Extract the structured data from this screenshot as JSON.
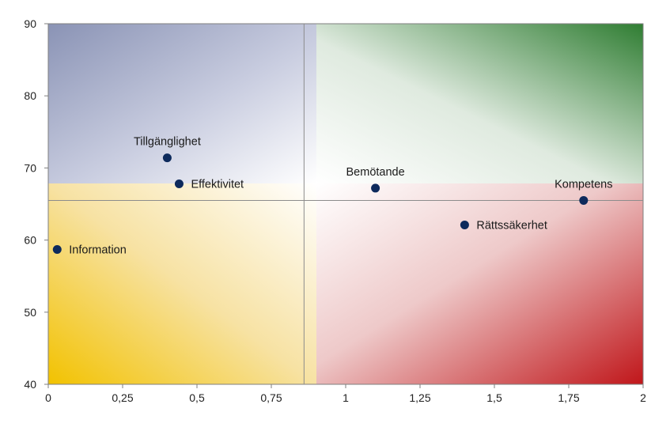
{
  "chart_data": {
    "type": "scatter",
    "title": "",
    "xlabel": "",
    "ylabel": "",
    "xlim": [
      0,
      2
    ],
    "ylim": [
      40,
      90
    ],
    "x_ticks": [
      0,
      0.25,
      0.5,
      0.75,
      1,
      1.25,
      1.5,
      1.75,
      2
    ],
    "x_tick_labels": [
      "0",
      "0,25",
      "0,5",
      "0,75",
      "1",
      "1,25",
      "1,5",
      "1,75",
      "2"
    ],
    "y_ticks": [
      40,
      50,
      60,
      70,
      80,
      90
    ],
    "y_tick_labels": [
      "40",
      "50",
      "60",
      "70",
      "80",
      "90"
    ],
    "reference_lines": {
      "x": 0.86,
      "y": 65.5
    },
    "grid": false,
    "legend": "none",
    "quadrant_colors": {
      "top_left": "#8a93b5",
      "top_right": "#2f7d32",
      "bottom_left": "#f2c200",
      "bottom_right": "#c0161a"
    },
    "marker_color": "#0d2a5c",
    "points": [
      {
        "label": "Information",
        "x": 0.03,
        "y": 58.7
      },
      {
        "label": "Tillgänglighet",
        "x": 0.4,
        "y": 71.4
      },
      {
        "label": "Effektivitet",
        "x": 0.44,
        "y": 67.8
      },
      {
        "label": "Bemötande",
        "x": 1.1,
        "y": 67.2
      },
      {
        "label": "Rättssäkerhet",
        "x": 1.4,
        "y": 62.1
      },
      {
        "label": "Kompetens",
        "x": 1.8,
        "y": 65.5
      }
    ]
  }
}
